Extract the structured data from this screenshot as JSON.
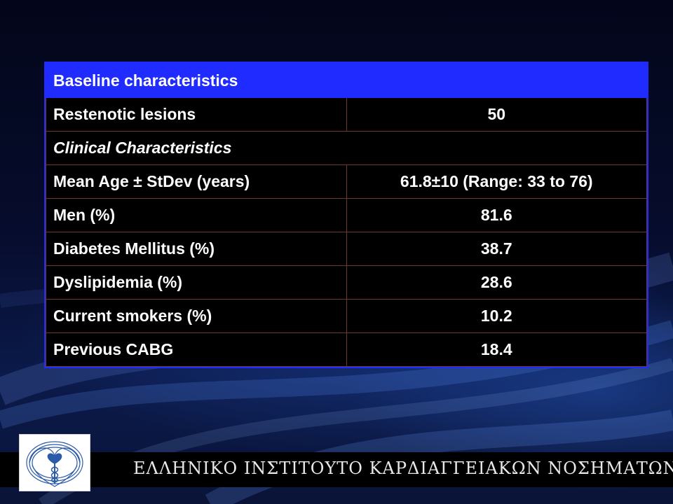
{
  "colors": {
    "header_fill": "#1f2bff",
    "cell_fill": "#000000",
    "text": "#ffffff",
    "cell_border": "#6b3a2a"
  },
  "table": {
    "header": "Baseline characteristics",
    "rows": [
      {
        "label": "Restenotic lesions",
        "value": "50"
      },
      {
        "section": "Clinical Characteristics"
      },
      {
        "label": "Mean Age ± StDev (years)",
        "value": "61.8±10 (Range: 33 to 76)"
      },
      {
        "label": "Men (%)",
        "value": "81.6"
      },
      {
        "label": "Diabetes Mellitus (%)",
        "value": "38.7"
      },
      {
        "label": "Dyslipidemia (%)",
        "value": "28.6"
      },
      {
        "label": "Current smokers (%)",
        "value": "10.2"
      },
      {
        "label": "Previous CABG",
        "value": "18.4"
      }
    ]
  },
  "footer": {
    "institute": "ΕΛΛΗΝΙΚΟ ΙΝΣΤΙΤΟΥΤΟ ΚΑΡΔΙΑΓΓΕΙΑΚΩΝ ΝΟΣΗΜΑΤΩΝ",
    "logo_icon": "heart-caduceus-logo"
  }
}
